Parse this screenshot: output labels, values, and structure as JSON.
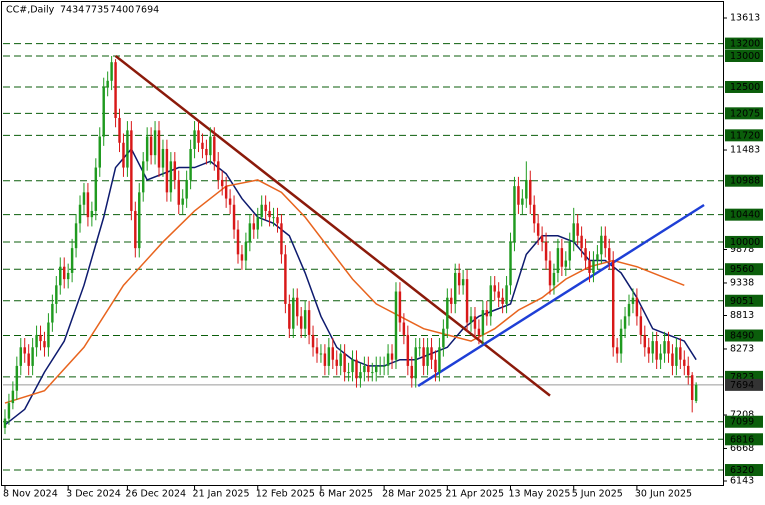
{
  "chart_data": {
    "type": "candlestick",
    "title": "CC#,Daily",
    "ylim": [
      6143,
      13613
    ],
    "yticks": [
      13613,
      11483,
      9878,
      9338,
      8813,
      8273,
      7208,
      6668,
      6143
    ],
    "xlim": [
      -0.5,
      181.8
    ],
    "xticks": [
      {
        "value": 0,
        "label": "8 Nov 2024"
      },
      {
        "value": 16,
        "label": "3 Dec 2024"
      },
      {
        "value": 31,
        "label": "26 Dec 2024"
      },
      {
        "value": 48,
        "label": "21 Jan 2025"
      },
      {
        "value": 64,
        "label": "12 Feb 2025"
      },
      {
        "value": 80,
        "label": "6 Mar 2025"
      },
      {
        "value": 96,
        "label": "28 Mar 2025"
      },
      {
        "value": 112,
        "label": "21 Apr 2025"
      },
      {
        "value": 128,
        "label": "13 May 2025"
      },
      {
        "value": 144,
        "label": "5 Jun 2025"
      },
      {
        "value": 160,
        "label": "30 Jun 2025"
      }
    ],
    "up_color": "#1f9a1f",
    "down_color": "#d81818",
    "level_color": "#0b5e0b",
    "levels": [
      13200,
      13000,
      12500,
      12075,
      11720,
      10988,
      10440,
      10000,
      9560,
      9051,
      8490,
      7823,
      7099,
      6816,
      6320
    ],
    "open": [
      7000,
      7150,
      7400,
      7600,
      8000,
      8300,
      8200,
      8000,
      8300,
      8500,
      8400,
      8300,
      8700,
      9000,
      9300,
      9600,
      9400,
      9500,
      9900,
      10300,
      10600,
      10800,
      10400,
      10500,
      11200,
      11700,
      12500,
      12600,
      12900,
      12000,
      11600,
      11200,
      11800,
      10500,
      9900,
      10800,
      11300,
      11700,
      11400,
      11800,
      11200,
      11500,
      10800,
      11300,
      11000,
      10600,
      10700,
      11000,
      11500,
      11800,
      11600,
      11500,
      11400,
      11700,
      11300,
      11000,
      10900,
      10700,
      10600,
      10200,
      9800,
      9700,
      10000,
      10300,
      10200,
      10400,
      10600,
      10500,
      10400,
      10400,
      10300,
      9800,
      9000,
      8600,
      9100,
      8800,
      8600,
      8900,
      8500,
      8300,
      8200,
      8200,
      8000,
      8300,
      8100,
      8000,
      8200,
      7900,
      7900,
      8100,
      7800,
      7900,
      8000,
      7900,
      7900,
      8000,
      8000,
      8000,
      8200,
      8100,
      9200,
      8700,
      8500,
      8000,
      7800,
      8300,
      8300,
      8000,
      8300,
      8100,
      7900,
      8300,
      8600,
      9100,
      9000,
      9500,
      9300,
      9400,
      8700,
      8800,
      8600,
      8500,
      8900,
      8800,
      9300,
      9200,
      9100,
      9000,
      9300,
      10000,
      10900,
      10600,
      10700,
      11000,
      10600,
      10300,
      10100,
      10000,
      9700,
      9300,
      9500,
      9900,
      9600,
      9700,
      10000,
      10300,
      10100,
      9900,
      9700,
      9500,
      9700,
      9800,
      10100,
      9900,
      9700,
      8300,
      8200,
      8600,
      8800,
      9000,
      9100,
      8800,
      8500,
      8300,
      8200,
      8400,
      8100,
      8200,
      8400,
      8200,
      8000,
      8300,
      8100,
      8000,
      7850,
      7434
    ],
    "high": [
      7300,
      7550,
      7750,
      8150,
      8450,
      8450,
      8350,
      8450,
      8650,
      8650,
      8550,
      8850,
      9150,
      9450,
      9750,
      9750,
      9650,
      10050,
      10450,
      10750,
      10950,
      10950,
      10650,
      11350,
      11850,
      12650,
      12750,
      13000,
      12950,
      12150,
      11750,
      11950,
      11950,
      10650,
      10950,
      11450,
      11850,
      11850,
      11950,
      11950,
      11650,
      11650,
      11450,
      11450,
      11150,
      10850,
      11150,
      11650,
      11950,
      11950,
      11750,
      11650,
      11850,
      11850,
      11450,
      11150,
      11050,
      10850,
      10750,
      10350,
      9950,
      10150,
      10450,
      10450,
      10550,
      10750,
      10750,
      10650,
      10550,
      10550,
      10450,
      9950,
      9150,
      9250,
      9250,
      8950,
      9050,
      9050,
      8650,
      8450,
      8350,
      8350,
      8450,
      8450,
      8250,
      8350,
      8350,
      8050,
      8250,
      8250,
      8050,
      8150,
      8150,
      8050,
      8150,
      8150,
      8150,
      8350,
      8350,
      9350,
      9350,
      8850,
      8650,
      8150,
      8450,
      8450,
      8450,
      8450,
      8450,
      8250,
      8450,
      8750,
      9250,
      9250,
      9650,
      9650,
      9550,
      9550,
      8950,
      8950,
      8750,
      9050,
      9050,
      9450,
      9450,
      9350,
      9250,
      9450,
      10150,
      11050,
      11050,
      10850,
      11300,
      11150,
      10750,
      10450,
      10250,
      10150,
      9850,
      9650,
      10050,
      10050,
      9850,
      10150,
      10550,
      10450,
      10250,
      10050,
      9850,
      9850,
      9950,
      10250,
      10250,
      10050,
      9850,
      8450,
      8750,
      8950,
      9150,
      9250,
      9250,
      8950,
      8650,
      8450,
      8550,
      8550,
      8350,
      8550,
      8550,
      8350,
      8450,
      8450,
      8250,
      8150,
      7900,
      7735
    ],
    "low": [
      6900,
      7050,
      7300,
      7450,
      7850,
      8050,
      7850,
      7850,
      8150,
      8250,
      8150,
      8150,
      8550,
      8850,
      9150,
      9250,
      9250,
      9350,
      9750,
      10150,
      10450,
      10250,
      10250,
      10350,
      11050,
      11550,
      12350,
      12450,
      11850,
      11450,
      11050,
      11050,
      10350,
      9750,
      9750,
      10650,
      11150,
      11250,
      11250,
      11050,
      11050,
      10650,
      10650,
      10850,
      10450,
      10450,
      10550,
      10850,
      11350,
      11450,
      11350,
      11250,
      11250,
      11150,
      10850,
      10750,
      10550,
      10450,
      10050,
      9650,
      9550,
      9550,
      9850,
      10050,
      10050,
      10250,
      10350,
      10250,
      10250,
      10150,
      9650,
      8850,
      8450,
      8450,
      8650,
      8450,
      8450,
      8350,
      8150,
      8050,
      8050,
      7850,
      7850,
      7950,
      7850,
      7850,
      7750,
      7750,
      7750,
      7650,
      7650,
      7750,
      7750,
      7750,
      7750,
      7850,
      7850,
      7850,
      7950,
      7950,
      8550,
      8350,
      7850,
      7650,
      7650,
      8150,
      7850,
      7850,
      7950,
      7750,
      7750,
      8150,
      8450,
      8850,
      8850,
      9150,
      9150,
      8550,
      8550,
      8450,
      8350,
      8350,
      8650,
      8650,
      9050,
      8950,
      8850,
      8850,
      9150,
      9850,
      10450,
      10450,
      10550,
      10450,
      10150,
      9950,
      9850,
      9550,
      9150,
      9150,
      9350,
      9450,
      9450,
      9550,
      9850,
      9950,
      9750,
      9550,
      9350,
      9350,
      9550,
      9650,
      9750,
      9550,
      8150,
      8050,
      8050,
      8450,
      8650,
      8850,
      8650,
      8350,
      8150,
      8050,
      8050,
      7950,
      7950,
      8050,
      8050,
      7850,
      7850,
      7950,
      7850,
      7700,
      7250,
      7400
    ],
    "close": [
      7150,
      7400,
      7600,
      8000,
      8300,
      8200,
      8000,
      8300,
      8500,
      8400,
      8300,
      8700,
      9000,
      9300,
      9600,
      9400,
      9500,
      9900,
      10300,
      10600,
      10800,
      10400,
      10500,
      11200,
      11700,
      12500,
      12600,
      12900,
      12000,
      11600,
      11200,
      11800,
      10500,
      9900,
      10800,
      11300,
      11700,
      11400,
      11800,
      11200,
      11500,
      10800,
      11300,
      11000,
      10600,
      10700,
      11000,
      11500,
      11800,
      11600,
      11500,
      11400,
      11700,
      11300,
      11000,
      10900,
      10700,
      10600,
      10200,
      9800,
      9700,
      10000,
      10300,
      10200,
      10400,
      10600,
      10500,
      10400,
      10400,
      10300,
      9800,
      9000,
      8600,
      9100,
      8800,
      8600,
      8900,
      8500,
      8300,
      8200,
      8200,
      8000,
      8300,
      8100,
      8000,
      8200,
      7900,
      7900,
      8100,
      7800,
      7900,
      8000,
      7900,
      7900,
      8000,
      8000,
      8000,
      8200,
      8100,
      9200,
      8700,
      8500,
      8000,
      7800,
      8300,
      8300,
      8000,
      8300,
      8100,
      7900,
      8300,
      8600,
      9100,
      9000,
      9500,
      9300,
      9400,
      8700,
      8800,
      8600,
      8500,
      8900,
      8800,
      9300,
      9200,
      9100,
      9000,
      9300,
      10000,
      10900,
      10600,
      10700,
      11000,
      10600,
      10300,
      10100,
      10000,
      9700,
      9300,
      9500,
      9900,
      9600,
      9700,
      10000,
      10300,
      10100,
      9900,
      9700,
      9500,
      9700,
      9800,
      10100,
      9900,
      9700,
      8300,
      8200,
      8600,
      8800,
      9000,
      9100,
      8800,
      8500,
      8300,
      8200,
      8400,
      8100,
      8200,
      8400,
      8200,
      8000,
      8300,
      8100,
      8000,
      7850,
      7450,
      7694
    ],
    "moving_averages": [
      {
        "color": "#0d1a6e",
        "points": [
          [
            0,
            7050
          ],
          [
            5,
            7300
          ],
          [
            10,
            7900
          ],
          [
            15,
            8400
          ],
          [
            20,
            9300
          ],
          [
            25,
            10400
          ],
          [
            28,
            11200
          ],
          [
            32,
            11500
          ],
          [
            36,
            11000
          ],
          [
            40,
            11100
          ],
          [
            44,
            11200
          ],
          [
            48,
            11200
          ],
          [
            52,
            11300
          ],
          [
            56,
            11100
          ],
          [
            60,
            10700
          ],
          [
            64,
            10400
          ],
          [
            68,
            10300
          ],
          [
            72,
            10100
          ],
          [
            76,
            9500
          ],
          [
            80,
            8800
          ],
          [
            84,
            8300
          ],
          [
            88,
            8100
          ],
          [
            92,
            8000
          ],
          [
            96,
            8000
          ],
          [
            100,
            8100
          ],
          [
            104,
            8100
          ],
          [
            108,
            8200
          ],
          [
            112,
            8300
          ],
          [
            116,
            8600
          ],
          [
            120,
            8800
          ],
          [
            124,
            8900
          ],
          [
            128,
            9000
          ],
          [
            132,
            9800
          ],
          [
            136,
            10100
          ],
          [
            140,
            10100
          ],
          [
            144,
            10000
          ],
          [
            148,
            9700
          ],
          [
            152,
            9700
          ],
          [
            156,
            9500
          ],
          [
            160,
            9100
          ],
          [
            164,
            8600
          ],
          [
            168,
            8500
          ],
          [
            172,
            8400
          ],
          [
            175,
            8100
          ]
        ]
      },
      {
        "color": "#e8641e",
        "points": [
          [
            0,
            7400
          ],
          [
            10,
            7600
          ],
          [
            20,
            8300
          ],
          [
            30,
            9300
          ],
          [
            40,
            10000
          ],
          [
            48,
            10500
          ],
          [
            56,
            10900
          ],
          [
            64,
            11000
          ],
          [
            70,
            10800
          ],
          [
            76,
            10400
          ],
          [
            82,
            9900
          ],
          [
            88,
            9400
          ],
          [
            94,
            9000
          ],
          [
            100,
            8800
          ],
          [
            106,
            8600
          ],
          [
            112,
            8500
          ],
          [
            118,
            8400
          ],
          [
            124,
            8600
          ],
          [
            130,
            8900
          ],
          [
            136,
            9100
          ],
          [
            142,
            9400
          ],
          [
            148,
            9600
          ],
          [
            154,
            9700
          ],
          [
            160,
            9600
          ],
          [
            166,
            9450
          ],
          [
            172,
            9300
          ]
        ]
      }
    ],
    "trendlines": [
      {
        "color": "#8b1a0a",
        "points": [
          [
            28,
            13000
          ],
          [
            138,
            7520
          ]
        ]
      },
      {
        "color": "#1e3fd6",
        "points": [
          [
            104.6,
            7676
          ],
          [
            177,
            10596
          ]
        ]
      }
    ]
  }
}
